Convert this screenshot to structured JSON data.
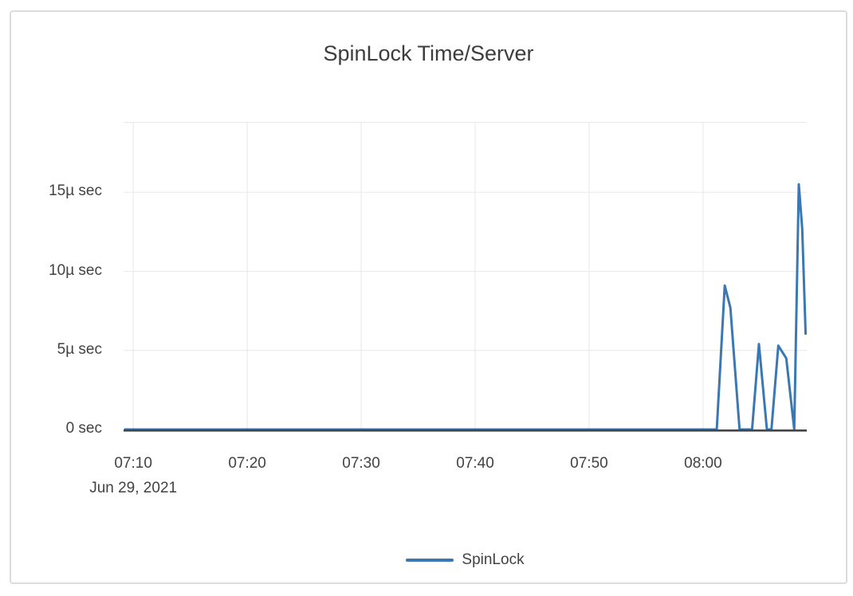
{
  "page": {
    "background": "#ffffff",
    "card_border_color": "#dcdcdc"
  },
  "chart_data": {
    "type": "line",
    "title": "SpinLock Time/Server",
    "date_label": "Jun 29, 2021",
    "x_axis": {
      "unit": "time of day (HH:MM), minutes after 07:00 used as numeric position",
      "range_minutes": [
        9.15,
        69.1
      ],
      "ticks": [
        {
          "t": 10,
          "label": "07:10"
        },
        {
          "t": 20,
          "label": "07:20"
        },
        {
          "t": 30,
          "label": "07:30"
        },
        {
          "t": 40,
          "label": "07:40"
        },
        {
          "t": 50,
          "label": "07:50"
        },
        {
          "t": 60,
          "label": "08:00"
        }
      ]
    },
    "y_axis": {
      "unit": "microseconds",
      "range_microseconds": [
        0,
        19.45
      ],
      "ticks": [
        {
          "v": 0,
          "label": "0 sec"
        },
        {
          "v": 5,
          "label": "5µ sec"
        },
        {
          "v": 10,
          "label": "10µ sec"
        },
        {
          "v": 15,
          "label": "15µ sec"
        }
      ]
    },
    "grid": true,
    "grid_color": "#ebebeb",
    "axis_color": "#444444",
    "text_color": "#424242",
    "legend": {
      "position": "bottom-center",
      "entries": [
        "SpinLock"
      ]
    },
    "series": [
      {
        "name": "SpinLock",
        "color": "#3a78b4",
        "points_t_minutes_v_usec": [
          [
            9.2,
            0
          ],
          [
            61.2,
            0
          ],
          [
            61.9,
            9.1
          ],
          [
            62.4,
            7.7
          ],
          [
            63.2,
            0
          ],
          [
            64.3,
            0
          ],
          [
            64.9,
            5.4
          ],
          [
            65.6,
            0
          ],
          [
            66.0,
            0
          ],
          [
            66.6,
            5.3
          ],
          [
            67.3,
            4.5
          ],
          [
            68.0,
            0
          ],
          [
            68.4,
            15.5
          ],
          [
            68.7,
            12.7
          ],
          [
            69.0,
            6.0
          ]
        ]
      }
    ]
  }
}
